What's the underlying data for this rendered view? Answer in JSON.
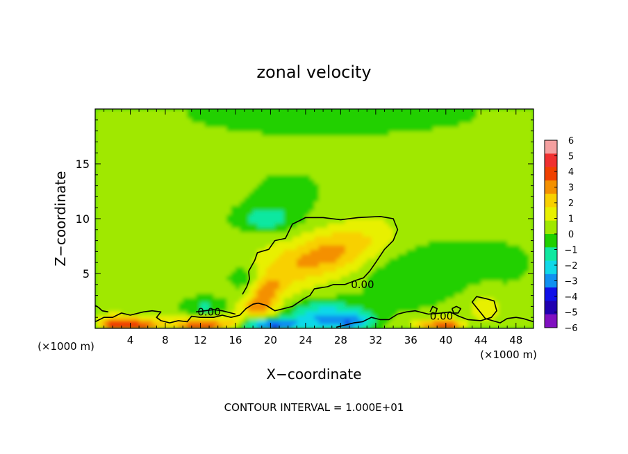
{
  "chart_data": {
    "type": "heatmap",
    "title": "zonal velocity",
    "xlabel": "X−coordinate",
    "ylabel": "Z−coordinate",
    "x_unit_left": "(×1000 m)",
    "x_unit_right": "(×1000 m)",
    "footer": "CONTOUR INTERVAL = 1.000E+01",
    "xlim": [
      0,
      50
    ],
    "ylim": [
      0,
      20
    ],
    "x_ticks": [
      4,
      8,
      12,
      16,
      20,
      24,
      28,
      32,
      36,
      40,
      44,
      48
    ],
    "x_tick_labels": [
      "4",
      "8",
      "12",
      "16",
      "20",
      "24",
      "28",
      "32",
      "36",
      "40",
      "44",
      "48"
    ],
    "y_ticks": [
      5,
      10,
      15
    ],
    "y_tick_labels": [
      "5",
      "10",
      "15"
    ],
    "colorbar": {
      "levels": [
        6,
        5,
        4,
        3,
        2,
        1,
        0,
        -1,
        -2,
        -3,
        -4,
        -5,
        -6
      ],
      "labels": [
        "6",
        "5",
        "4",
        "3",
        "2",
        "1",
        "0",
        "−1",
        "−2",
        "−3",
        "−4",
        "−5",
        "−6"
      ],
      "colors": [
        "#f4a0a0",
        "#f03030",
        "#f04000",
        "#f49000",
        "#f8d000",
        "#e8f000",
        "#a0e800",
        "#20d000",
        "#10e8a0",
        "#10d8e8",
        "#1090f0",
        "#1010e8",
        "#2000b0",
        "#8010c0"
      ]
    },
    "contour_labels": [
      {
        "text": "0.00",
        "x": 30.5,
        "z": 4.0
      },
      {
        "text": "0.00",
        "x": 13.0,
        "z": 1.5
      },
      {
        "text": "0.00",
        "x": 39.5,
        "z": 1.1
      }
    ],
    "features": [
      {
        "kind": "positive",
        "x": 26,
        "z": 6.3,
        "sx": 3.0,
        "sz": 1.2,
        "amp": 2.1
      },
      {
        "kind": "positive",
        "x": 28,
        "z": 7.8,
        "sx": 3.0,
        "sz": 1.2,
        "amp": 1.4
      },
      {
        "kind": "positive",
        "x": 21.5,
        "z": 5.2,
        "sx": 2.5,
        "sz": 1.5,
        "amp": 1.6
      },
      {
        "kind": "positive",
        "x": 19.5,
        "z": 3.5,
        "sx": 1.3,
        "sz": 0.9,
        "amp": 2.6
      },
      {
        "kind": "positive",
        "x": 18.5,
        "z": 1.9,
        "sx": 1.5,
        "sz": 0.6,
        "amp": 3.0
      },
      {
        "kind": "positive",
        "x": 32,
        "z": 8.2,
        "sx": 3.0,
        "sz": 1.4,
        "amp": 1.0
      },
      {
        "kind": "positive",
        "x": 4.5,
        "z": 0.3,
        "sx": 2.2,
        "sz": 0.5,
        "amp": 4.2
      },
      {
        "kind": "positive",
        "x": 12.0,
        "z": 0.3,
        "sx": 2.0,
        "sz": 0.45,
        "amp": 4.5
      },
      {
        "kind": "positive",
        "x": 38.5,
        "z": 0.3,
        "sx": 1.6,
        "sz": 0.4,
        "amp": 3.2
      },
      {
        "kind": "positive",
        "x": 40.5,
        "z": 0.3,
        "sx": 1.0,
        "sz": 0.4,
        "amp": 2.8
      },
      {
        "kind": "positive",
        "x": 44.5,
        "z": 1.9,
        "sx": 1.2,
        "sz": 0.9,
        "amp": 1.6
      },
      {
        "kind": "positive",
        "x": 2.0,
        "z": 0.5,
        "sx": 1.0,
        "sz": 0.5,
        "amp": 2.0
      },
      {
        "kind": "positive",
        "x": 15.5,
        "z": 0.6,
        "sx": 1.0,
        "sz": 0.5,
        "amp": 1.5
      },
      {
        "kind": "negative",
        "x": 26.0,
        "z": 1.0,
        "sx": 3.2,
        "sz": 1.0,
        "amp": -3.5
      },
      {
        "kind": "negative",
        "x": 20.0,
        "z": 0.35,
        "sx": 2.2,
        "sz": 0.35,
        "amp": -4.6
      },
      {
        "kind": "negative",
        "x": 29.5,
        "z": 0.6,
        "sx": 1.6,
        "sz": 0.6,
        "amp": -2.5
      },
      {
        "kind": "negative",
        "x": 19.5,
        "z": 10.0,
        "sx": 2.5,
        "sz": 0.9,
        "amp": -1.8
      },
      {
        "kind": "negative",
        "x": 17.0,
        "z": 4.6,
        "sx": 1.3,
        "sz": 0.8,
        "amp": -1.5
      },
      {
        "kind": "negative",
        "x": 35.0,
        "z": 5.0,
        "sx": 4.0,
        "sz": 2.5,
        "amp": -1.1
      },
      {
        "kind": "negative",
        "x": 27.0,
        "z": 19.5,
        "sx": 14.0,
        "sz": 1.6,
        "amp": -1.0
      },
      {
        "kind": "negative",
        "x": 22.0,
        "z": 12.5,
        "sx": 4.5,
        "sz": 2.0,
        "amp": -0.7
      },
      {
        "kind": "negative",
        "x": 12.5,
        "z": 2.0,
        "sx": 2.0,
        "sz": 0.7,
        "amp": -1.6
      },
      {
        "kind": "negative",
        "x": 46.0,
        "z": 6.0,
        "sx": 6.0,
        "sz": 3.0,
        "amp": -0.6
      },
      {
        "kind": "negative",
        "x": 36.5,
        "z": 12.5,
        "sx": 3.5,
        "sz": 2.0,
        "amp": 0.4
      }
    ],
    "zero_contours": [
      [
        [
          17.5,
          5.2
        ],
        [
          18.2,
          6.2
        ],
        [
          18.5,
          6.9
        ],
        [
          19.8,
          7.2
        ],
        [
          20.5,
          8.0
        ],
        [
          21.7,
          8.2
        ],
        [
          22.5,
          9.5
        ],
        [
          23.5,
          9.9
        ],
        [
          24.0,
          10.1
        ],
        [
          26.0,
          10.1
        ],
        [
          28.0,
          9.9
        ],
        [
          30.0,
          10.1
        ],
        [
          32.5,
          10.2
        ],
        [
          34.0,
          10.0
        ],
        [
          34.5,
          9.0
        ],
        [
          34.0,
          8.0
        ],
        [
          33.0,
          7.2
        ],
        [
          32.0,
          6.0
        ],
        [
          31.3,
          5.2
        ],
        [
          30.6,
          4.6
        ],
        [
          29.8,
          4.4
        ],
        [
          28.5,
          4.0
        ],
        [
          27.2,
          4.0
        ],
        [
          26.5,
          3.8
        ],
        [
          25.0,
          3.6
        ],
        [
          24.5,
          3.0
        ],
        [
          23.8,
          2.7
        ],
        [
          22.5,
          2.0
        ],
        [
          21.5,
          1.8
        ],
        [
          20.5,
          1.6
        ],
        [
          19.5,
          2.1
        ],
        [
          18.6,
          2.3
        ],
        [
          18.0,
          2.2
        ],
        [
          17.2,
          1.8
        ],
        [
          16.5,
          1.2
        ],
        [
          15.5,
          1.0
        ],
        [
          14.5,
          1.2
        ],
        [
          13.5,
          1.0
        ],
        [
          12.0,
          1.0
        ],
        [
          11.0,
          1.1
        ],
        [
          10.5,
          0.6
        ],
        [
          9.5,
          0.7
        ],
        [
          8.5,
          0.5
        ],
        [
          7.5,
          0.7
        ],
        [
          7.0,
          1.0
        ],
        [
          7.5,
          1.5
        ],
        [
          6.5,
          1.6
        ],
        [
          5.5,
          1.5
        ],
        [
          4.0,
          1.2
        ],
        [
          3.0,
          1.4
        ],
        [
          2.0,
          1.0
        ],
        [
          1.0,
          1.0
        ],
        [
          0.0,
          0.6
        ]
      ],
      [
        [
          16.8,
          3.1
        ],
        [
          17.3,
          3.8
        ],
        [
          17.6,
          4.5
        ],
        [
          17.5,
          5.2
        ]
      ],
      [
        [
          50.0,
          0.6
        ],
        [
          48.8,
          0.9
        ],
        [
          48.0,
          1.0
        ],
        [
          47.0,
          0.9
        ],
        [
          46.2,
          0.5
        ],
        [
          45.3,
          0.7
        ],
        [
          44.5,
          0.9
        ],
        [
          43.8,
          1.6
        ],
        [
          43.0,
          2.4
        ],
        [
          43.5,
          2.9
        ],
        [
          44.6,
          2.7
        ],
        [
          45.5,
          2.5
        ],
        [
          45.8,
          1.6
        ],
        [
          45.2,
          1.0
        ],
        [
          44.0,
          0.7
        ],
        [
          42.5,
          0.8
        ],
        [
          41.5,
          1.1
        ],
        [
          40.5,
          1.5
        ],
        [
          39.5,
          1.4
        ],
        [
          38.0,
          1.3
        ],
        [
          36.5,
          1.6
        ],
        [
          35.5,
          1.5
        ],
        [
          34.5,
          1.3
        ],
        [
          33.5,
          0.8
        ],
        [
          32.5,
          0.8
        ],
        [
          31.5,
          1.0
        ],
        [
          30.5,
          0.6
        ],
        [
          29.5,
          0.5
        ],
        [
          28.5,
          0.3
        ],
        [
          27.5,
          0.1
        ]
      ],
      [
        [
          0.0,
          2.1
        ],
        [
          0.4,
          1.9
        ],
        [
          0.8,
          1.6
        ],
        [
          1.5,
          1.5
        ]
      ],
      [
        [
          11.5,
          1.5
        ],
        [
          12.5,
          1.6
        ],
        [
          13.5,
          1.7
        ],
        [
          14.5,
          1.6
        ],
        [
          15.5,
          1.4
        ],
        [
          16.0,
          1.3
        ]
      ],
      [
        [
          38.2,
          1.5
        ],
        [
          38.5,
          2.0
        ],
        [
          39.0,
          1.8
        ],
        [
          38.8,
          1.3
        ]
      ],
      [
        [
          40.7,
          1.8
        ],
        [
          41.2,
          2.0
        ],
        [
          41.7,
          1.8
        ],
        [
          41.4,
          1.4
        ],
        [
          40.9,
          1.4
        ],
        [
          40.7,
          1.8
        ]
      ]
    ]
  }
}
